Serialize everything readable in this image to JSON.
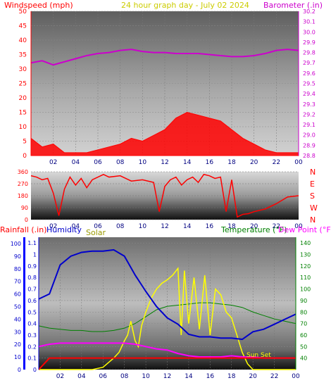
{
  "header": {
    "left_label": "Windspeed (mph)",
    "title": "24 hour graph day - July 02 2024",
    "right_label": "Barometer (.in)"
  },
  "colors": {
    "wind": "#ff0000",
    "gust_blue": "#0000ff",
    "green": "#008000",
    "barometer": "#cc00cc",
    "humidity": "#0000cc",
    "solar": "#ffff00",
    "temperature": "#008000",
    "dewpoint": "#ff00ff",
    "rain": "#ff0000",
    "title": "#cccc00"
  },
  "chart_data": [
    {
      "type": "area",
      "x_ticks": [
        "02",
        "04",
        "06",
        "08",
        "10",
        "12",
        "14",
        "16",
        "18",
        "20",
        "22",
        "00"
      ],
      "y_left": {
        "ticks": [
          0,
          5,
          10,
          15,
          20,
          25,
          30,
          35,
          40,
          45,
          50
        ],
        "range": [
          0,
          50
        ]
      },
      "y_right": {
        "ticks": [
          28.8,
          28.9,
          29.0,
          29.1,
          29.2,
          29.3,
          29.4,
          29.5,
          29.6,
          29.7,
          29.8,
          29.9,
          30.0,
          30.1,
          30.2
        ],
        "range": [
          28.8,
          30.2
        ]
      },
      "series": [
        {
          "name": "Windspeed (mph)",
          "axis": "left",
          "style": "area",
          "x": [
            0,
            1,
            2,
            3,
            4,
            5,
            6,
            7,
            8,
            9,
            10,
            11,
            12,
            13,
            14,
            15,
            16,
            17,
            18,
            19,
            20,
            21,
            22,
            23,
            24
          ],
          "values": [
            6,
            3,
            4,
            1,
            1,
            1,
            2,
            3,
            4,
            6,
            5,
            7,
            9,
            13,
            15,
            14,
            13,
            12,
            9,
            6,
            4,
            2,
            1,
            1,
            1
          ]
        },
        {
          "name": "Barometer (.in)",
          "axis": "right",
          "style": "line",
          "x": [
            0,
            1,
            2,
            3,
            4,
            5,
            6,
            7,
            8,
            9,
            10,
            11,
            12,
            13,
            14,
            15,
            16,
            17,
            18,
            19,
            20,
            21,
            22,
            23,
            24
          ],
          "values": [
            29.7,
            29.72,
            29.68,
            29.71,
            29.74,
            29.77,
            29.79,
            29.8,
            29.82,
            29.83,
            29.81,
            29.8,
            29.8,
            29.79,
            29.79,
            29.79,
            29.78,
            29.77,
            29.76,
            29.76,
            29.77,
            29.79,
            29.82,
            29.83,
            29.82
          ]
        }
      ]
    },
    {
      "type": "line",
      "x_ticks": [
        "02",
        "04",
        "06",
        "08",
        "10",
        "12",
        "14",
        "16",
        "18",
        "20",
        "22",
        "00"
      ],
      "y_left": {
        "ticks": [
          0,
          90,
          180,
          270,
          360
        ],
        "range": [
          0,
          360
        ]
      },
      "y_right_labels": [
        "N",
        "W",
        "S",
        "E",
        "N"
      ],
      "series": [
        {
          "name": "Wind direction",
          "x": [
            0,
            0.5,
            1,
            1.5,
            2,
            2.5,
            3,
            3.5,
            4,
            4.5,
            5,
            5.5,
            6,
            6.5,
            7,
            8,
            9,
            10,
            11,
            11.5,
            12,
            12.5,
            13,
            13.5,
            14,
            14.5,
            15,
            15.5,
            16,
            16.5,
            17,
            17.5,
            18,
            18.5,
            19,
            19.5,
            20,
            21,
            22,
            23,
            24
          ],
          "values": [
            330,
            320,
            300,
            310,
            200,
            30,
            230,
            320,
            260,
            310,
            240,
            300,
            320,
            340,
            320,
            330,
            290,
            300,
            280,
            60,
            250,
            300,
            320,
            260,
            300,
            320,
            280,
            340,
            330,
            310,
            320,
            60,
            300,
            20,
            40,
            45,
            60,
            80,
            120,
            170,
            180
          ]
        }
      ]
    },
    {
      "type": "line",
      "x_ticks": [
        "02",
        "04",
        "06",
        "08",
        "10",
        "12",
        "14",
        "16",
        "18",
        "20",
        "22",
        "00"
      ],
      "y_left_rain": {
        "ticks": [
          0,
          0.1,
          0.2,
          0.3,
          0.4,
          0.5,
          0.6,
          0.7,
          0.8,
          0.9,
          1,
          1.1
        ],
        "range": [
          0,
          1.15
        ]
      },
      "y_left_humidity": {
        "ticks": [
          0,
          10,
          20,
          30,
          40,
          50,
          60,
          70,
          80,
          90,
          100
        ],
        "range": [
          0,
          105
        ]
      },
      "y_right_temp": {
        "ticks": [
          40,
          50,
          60,
          70,
          80,
          90,
          100,
          110,
          120,
          130,
          140
        ],
        "range": [
          30,
          145
        ]
      },
      "labels": {
        "rainfall": "Rainfall (.in)",
        "humidity": "Humidity",
        "solar": "Solar",
        "temperature": "Temperature (°F)",
        "dewpoint": "Dew Point (°F)",
        "sunset": "Sun Set"
      },
      "series": [
        {
          "name": "Humidity",
          "axis": "humidity",
          "x": [
            0,
            1,
            2,
            3,
            4,
            5,
            6,
            7,
            8,
            9,
            10,
            11,
            12,
            13,
            14,
            15,
            16,
            17,
            18,
            19,
            20,
            21,
            22,
            23,
            24
          ],
          "values": [
            56,
            60,
            83,
            90,
            93,
            94,
            94,
            95,
            90,
            75,
            62,
            50,
            41,
            36,
            28,
            26,
            26,
            25,
            25,
            24,
            30,
            32,
            36,
            40,
            44
          ]
        },
        {
          "name": "Solar",
          "axis": "temperature",
          "x": [
            0,
            5,
            6,
            6.5,
            7,
            7.5,
            8,
            8.3,
            8.6,
            9,
            9.3,
            9.6,
            10,
            10.5,
            11,
            11.5,
            12,
            12.5,
            13,
            13.3,
            13.6,
            14,
            14.5,
            15,
            15.5,
            16,
            16.5,
            17,
            17.5,
            18,
            18.5,
            19,
            19.5,
            20,
            24
          ],
          "values": [
            30,
            30,
            32,
            36,
            40,
            45,
            55,
            60,
            72,
            55,
            50,
            68,
            80,
            92,
            100,
            105,
            108,
            112,
            118,
            60,
            116,
            70,
            110,
            65,
            112,
            60,
            100,
            95,
            80,
            75,
            60,
            45,
            35,
            30,
            30
          ]
        },
        {
          "name": "Temperature (°F)",
          "axis": "temperature",
          "x": [
            0,
            1,
            2,
            3,
            4,
            5,
            6,
            7,
            8,
            9,
            10,
            11,
            12,
            13,
            14,
            15,
            16,
            17,
            18,
            19,
            20,
            21,
            22,
            23,
            24
          ],
          "values": [
            68,
            66,
            65,
            64,
            64,
            63,
            63,
            64,
            66,
            70,
            76,
            82,
            85,
            86,
            87,
            88,
            88,
            87,
            86,
            84,
            80,
            77,
            74,
            72,
            70
          ]
        },
        {
          "name": "Dew Point (°F)",
          "axis": "temperature",
          "x": [
            0,
            1,
            2,
            3,
            4,
            5,
            6,
            7,
            8,
            9,
            10,
            11,
            12,
            13,
            14,
            15,
            16,
            17,
            18,
            19,
            20,
            21,
            22,
            23,
            24
          ],
          "values": [
            50,
            52,
            53,
            53,
            53,
            53,
            53,
            53,
            53,
            52,
            50,
            48,
            47,
            44,
            42,
            41,
            41,
            41,
            42,
            41,
            41,
            40,
            40,
            40,
            40
          ]
        },
        {
          "name": "Rainfall (.in)",
          "axis": "rain",
          "x": [
            0,
            0.5,
            1,
            6,
            8,
            10,
            12,
            14,
            16,
            18,
            20,
            22,
            24
          ],
          "values": [
            0,
            0.05,
            0.1,
            0.1,
            0.1,
            0.1,
            0.1,
            0.1,
            0.1,
            0.1,
            0.1,
            0.1,
            0.1
          ]
        }
      ]
    }
  ]
}
